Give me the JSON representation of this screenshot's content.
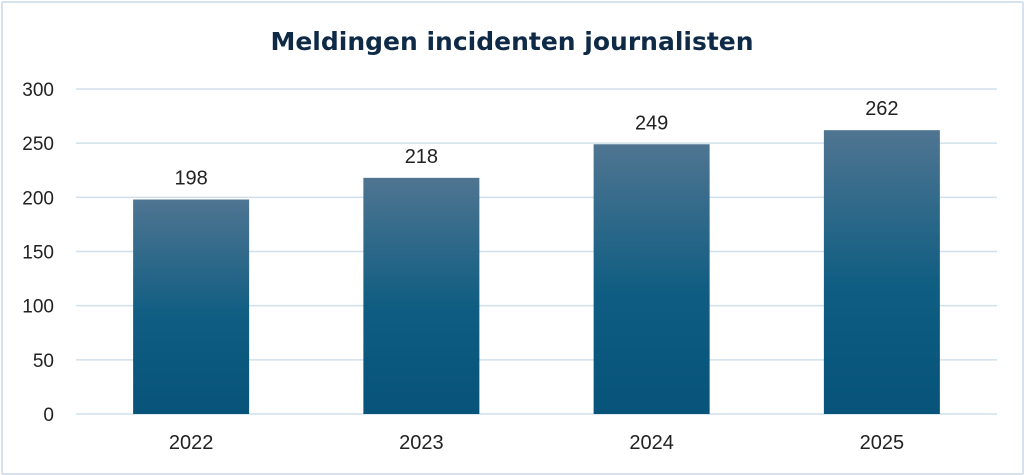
{
  "chart_data": {
    "type": "bar",
    "title": "Meldingen incidenten journalisten",
    "categories": [
      "2022",
      "2023",
      "2024",
      "2025"
    ],
    "values": [
      198,
      218,
      249,
      262
    ],
    "xlabel": "",
    "ylabel": "",
    "ylim": [
      0,
      300
    ],
    "yticks": [
      0,
      50,
      100,
      150,
      200,
      250,
      300
    ],
    "grid": true,
    "data_labels": true,
    "colors": {
      "bar_top": "#4f7591",
      "bar_bottom": "#07537a",
      "grid": "#cfe0ec"
    }
  }
}
